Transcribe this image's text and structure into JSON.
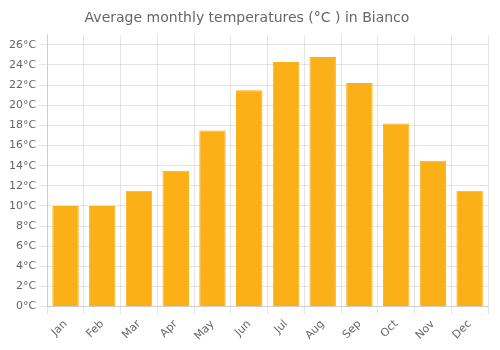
{
  "chart_data": {
    "type": "bar",
    "title": "Average monthly temperatures (°C ) in Bianco",
    "categories": [
      "Jan",
      "Feb",
      "Mar",
      "Apr",
      "May",
      "Jun",
      "Jul",
      "Aug",
      "Sep",
      "Oct",
      "Nov",
      "Dec"
    ],
    "values": [
      10.0,
      10.0,
      11.5,
      13.5,
      17.5,
      21.5,
      24.3,
      24.8,
      22.2,
      18.2,
      14.5,
      11.5
    ],
    "color": "#FBB017",
    "ylim": [
      0,
      27
    ],
    "yticks": [
      {
        "value": 0,
        "label": "0°C"
      },
      {
        "value": 2,
        "label": "2°C"
      },
      {
        "value": 4,
        "label": "4°C"
      },
      {
        "value": 6,
        "label": "6°C"
      },
      {
        "value": 8,
        "label": "8°C"
      },
      {
        "value": 10,
        "label": "10°C"
      },
      {
        "value": 12,
        "label": "12°C"
      },
      {
        "value": 14,
        "label": "14°C"
      },
      {
        "value": 16,
        "label": "16°C"
      },
      {
        "value": 18,
        "label": "18°C"
      },
      {
        "value": 20,
        "label": "20°C"
      },
      {
        "value": 22,
        "label": "22°C"
      },
      {
        "value": 24,
        "label": "24°C"
      },
      {
        "value": 26,
        "label": "26°C"
      }
    ],
    "grid": true
  }
}
